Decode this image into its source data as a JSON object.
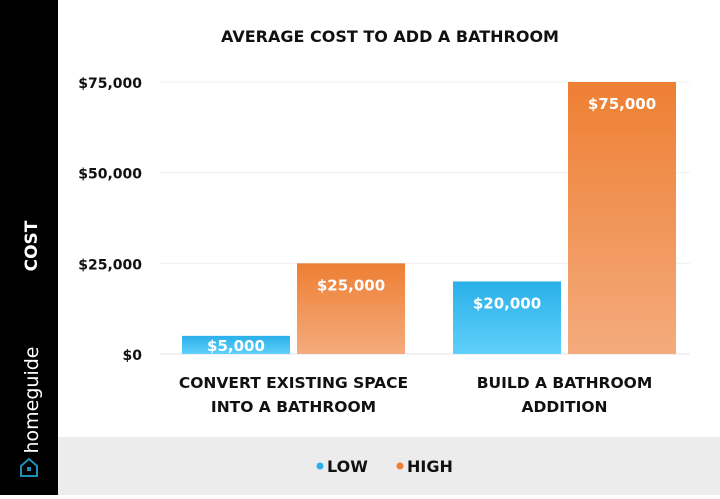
{
  "brand": {
    "name": "homeguide",
    "icon": "house-icon"
  },
  "chart_data": {
    "type": "bar",
    "title": "AVERAGE COST TO ADD A BATHROOM",
    "ylabel": "COST",
    "xlabel": "",
    "categories": [
      [
        "CONVERT EXISTING SPACE",
        "INTO A BATHROOM"
      ],
      [
        "BUILD A BATHROOM",
        "ADDITION"
      ]
    ],
    "series": [
      {
        "name": "LOW",
        "values": [
          5000,
          20000
        ],
        "labels": [
          "$5,000",
          "$20,000"
        ],
        "color": "#2ab0e8",
        "color_light": "#5fd0fa"
      },
      {
        "name": "HIGH",
        "values": [
          25000,
          75000
        ],
        "labels": [
          "$25,000",
          "$75,000"
        ],
        "color": "#ee7f33",
        "color_light": "#f4ab7d"
      }
    ],
    "ylim": [
      0,
      75000
    ],
    "yticks": [
      0,
      25000,
      50000,
      75000
    ],
    "ytick_labels": [
      "$0",
      "$25,000",
      "$50,000",
      "$75,000"
    ],
    "grid": true,
    "legend_position": "bottom"
  }
}
